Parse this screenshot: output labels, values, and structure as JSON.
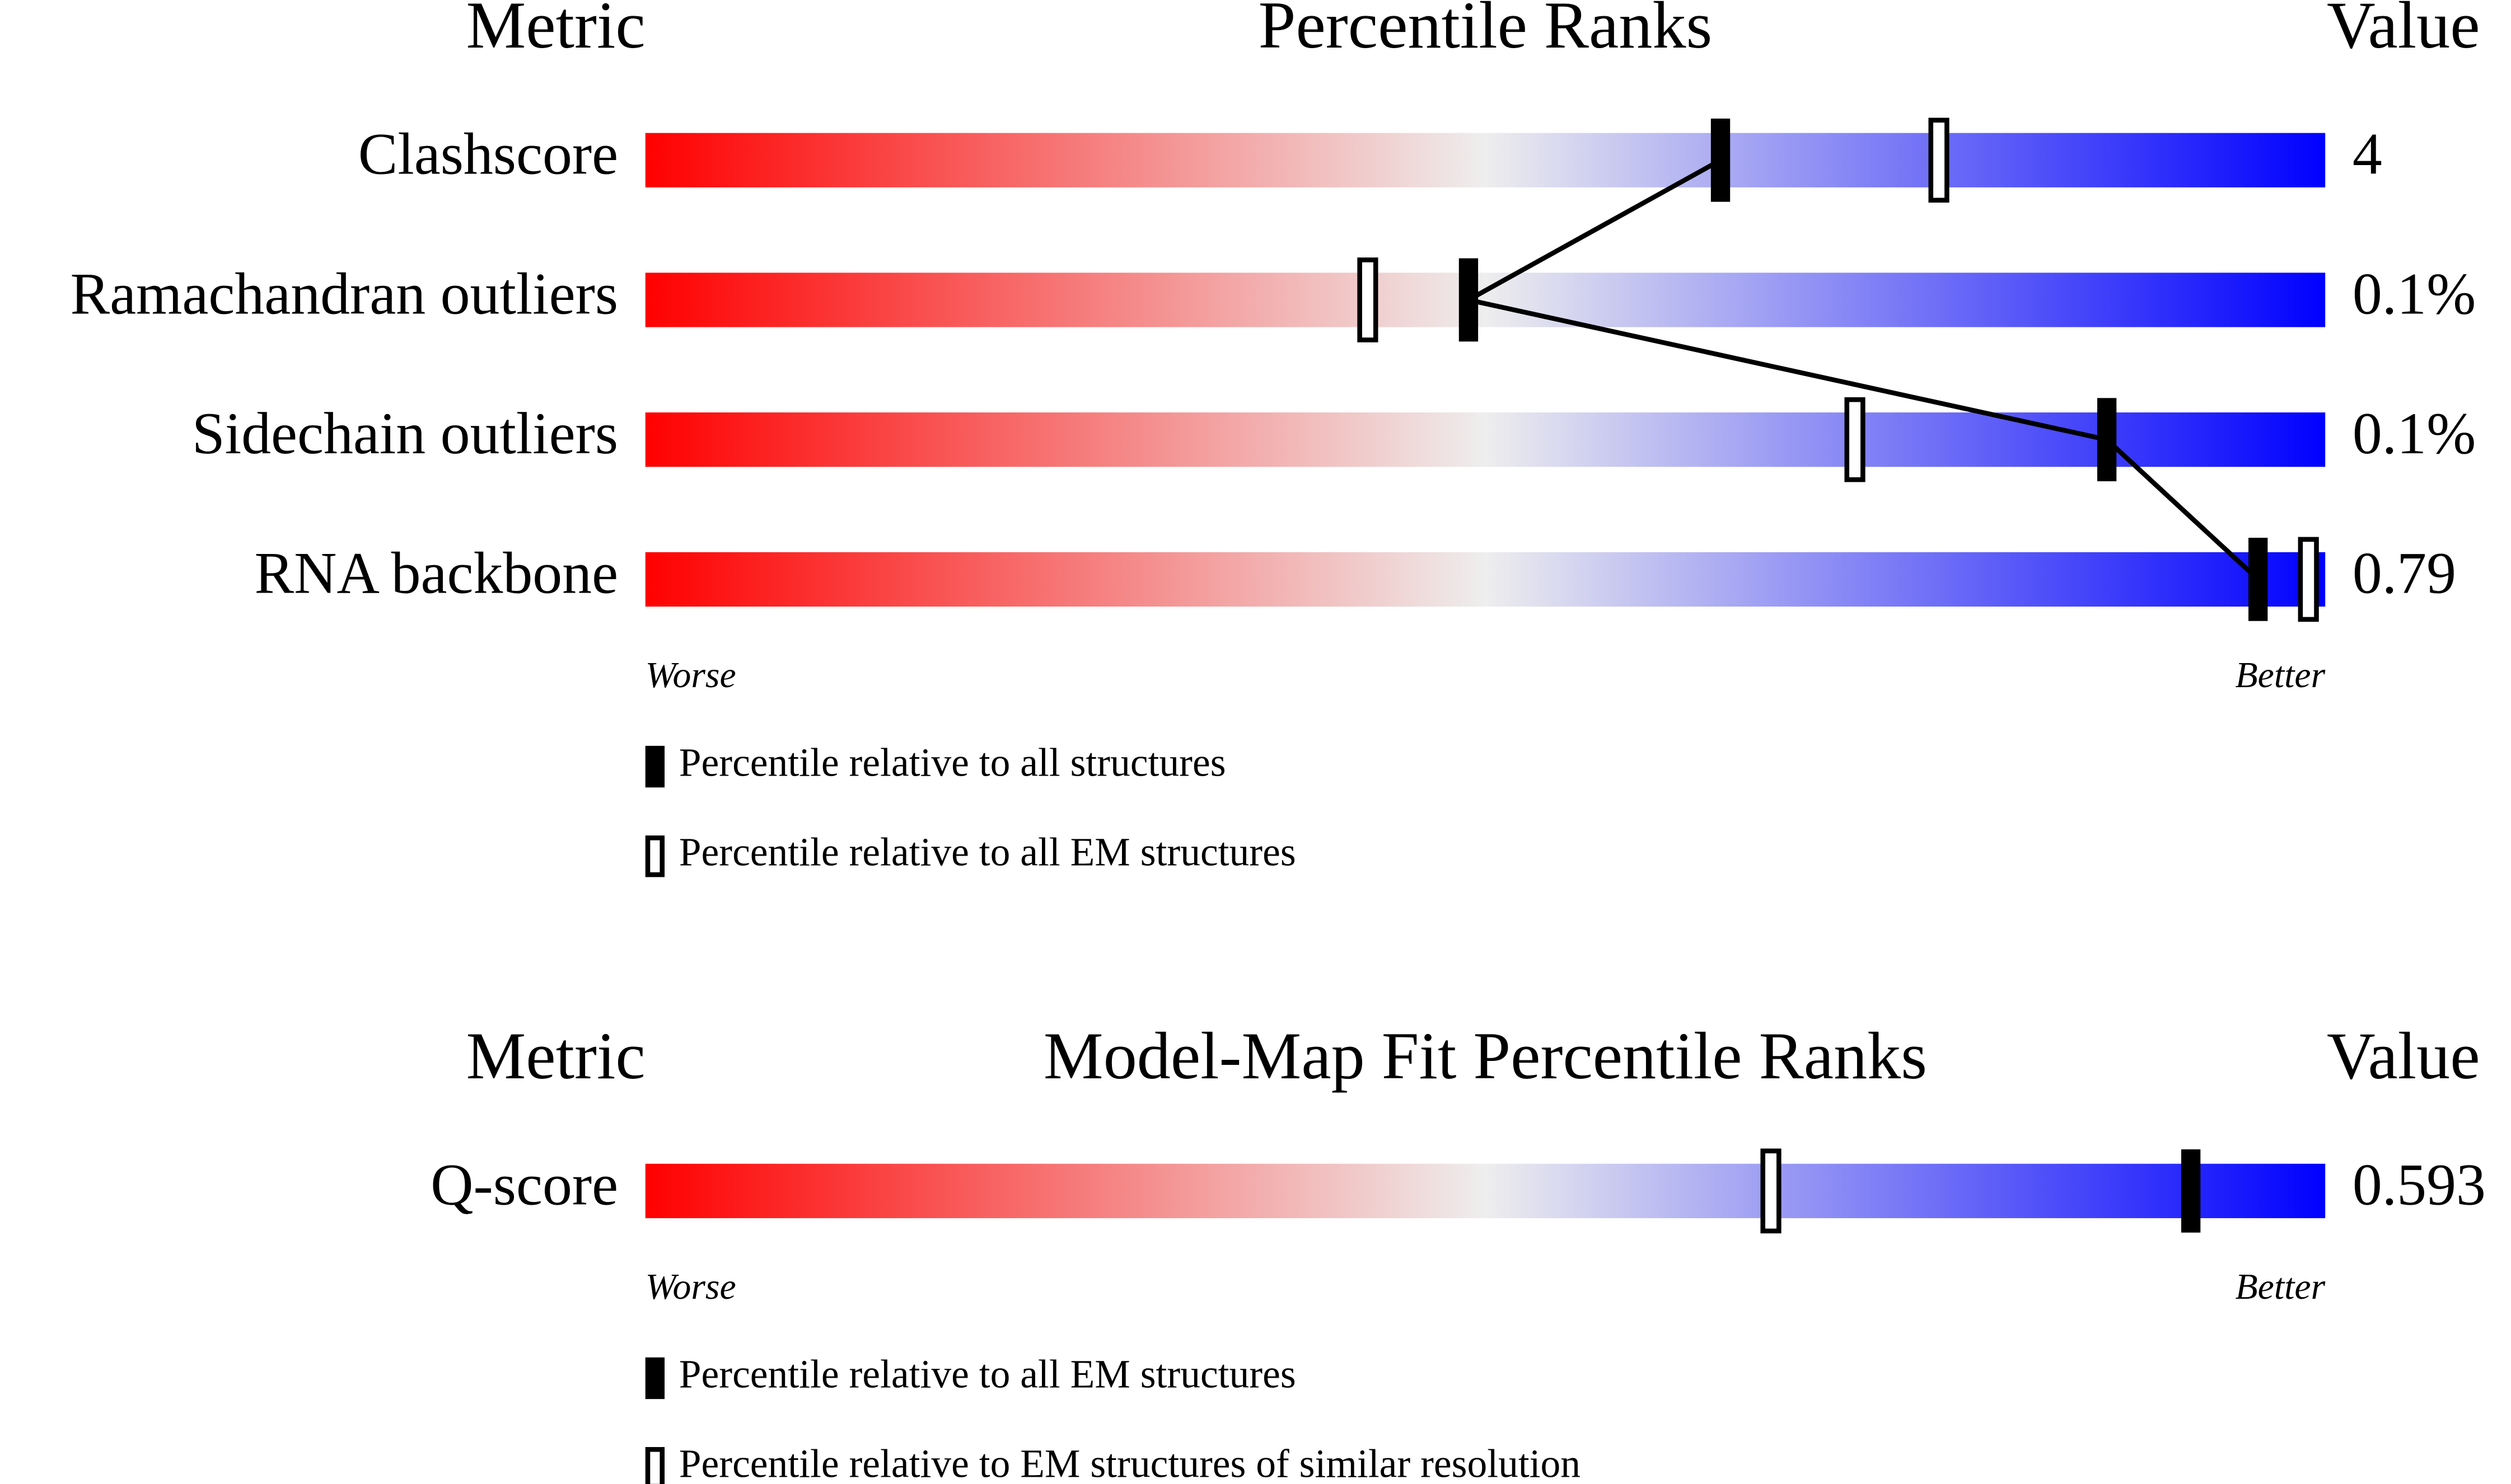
{
  "chart_data": [
    {
      "type": "slider",
      "xlim": [
        0,
        100
      ],
      "colors": [
        "#ff0000",
        "#eeeeee",
        "#0000ff"
      ],
      "connect": true,
      "headers": {
        "metric": "Metric",
        "title": "Percentile Ranks",
        "value": "Value"
      },
      "rows": [
        {
          "metric": "Clashscore",
          "value": "4",
          "all": 64,
          "subset": 77
        },
        {
          "metric": "Ramachandran outliers",
          "value": "0.1%",
          "all": 49,
          "subset": 43
        },
        {
          "metric": "Sidechain outliers",
          "value": "0.1%",
          "all": 87,
          "subset": 72
        },
        {
          "metric": "RNA backbone",
          "value": "0.79",
          "all": 96,
          "subset": 99
        }
      ],
      "worse": "Worse",
      "better": "Better",
      "legend": {
        "all": "Percentile relative to all structures",
        "subset": "Percentile relative to all EM structures"
      }
    },
    {
      "type": "slider",
      "xlim": [
        0,
        100
      ],
      "colors": [
        "#ff0000",
        "#eeeeee",
        "#0000ff"
      ],
      "connect": false,
      "headers": {
        "metric": "Metric",
        "title": "Model-Map Fit Percentile Ranks",
        "value": "Value"
      },
      "rows": [
        {
          "metric": "Q-score",
          "value": "0.593",
          "all": 92,
          "subset": 67
        }
      ],
      "worse": "Worse",
      "better": "Better",
      "legend": {
        "all": "Percentile relative to all EM structures",
        "subset": "Percentile relative to EM structures of similar resolution"
      }
    }
  ]
}
